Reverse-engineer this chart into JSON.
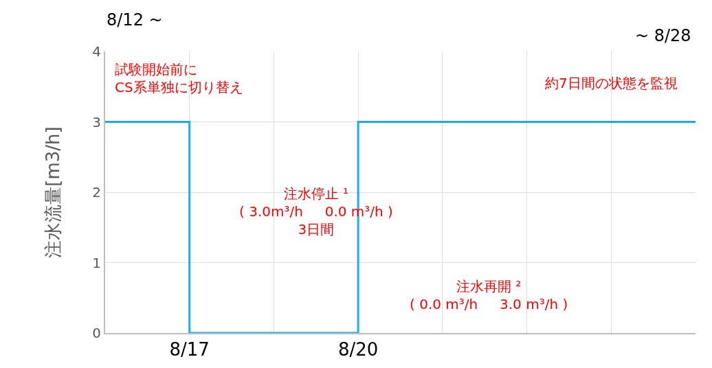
{
  "chart_data": {
    "type": "step",
    "ylabel": "注水流量[m3/h]",
    "categories": [
      null,
      "8/17",
      null,
      "8/20",
      null,
      null,
      null,
      null
    ],
    "series": [
      {
        "color": "#19aee8",
        "values": [
          3,
          0,
          0,
          3,
          3,
          3,
          3,
          3
        ]
      }
    ],
    "ylim": [
      0,
      4
    ],
    "yticks": [
      0,
      1,
      2,
      3,
      4
    ],
    "grid": true,
    "annotations": [
      "8/12 ~",
      "~ 8/28",
      "試験開始前に\nCS系単独に切り替え",
      "約7日間の状態を監視",
      "注水停止 ¹\n( 3.0m³/h     0.0 m³/h )\n3日間",
      "注水再開 ²\n( 0.0 m³/h     3.0 m³/h )"
    ]
  }
}
